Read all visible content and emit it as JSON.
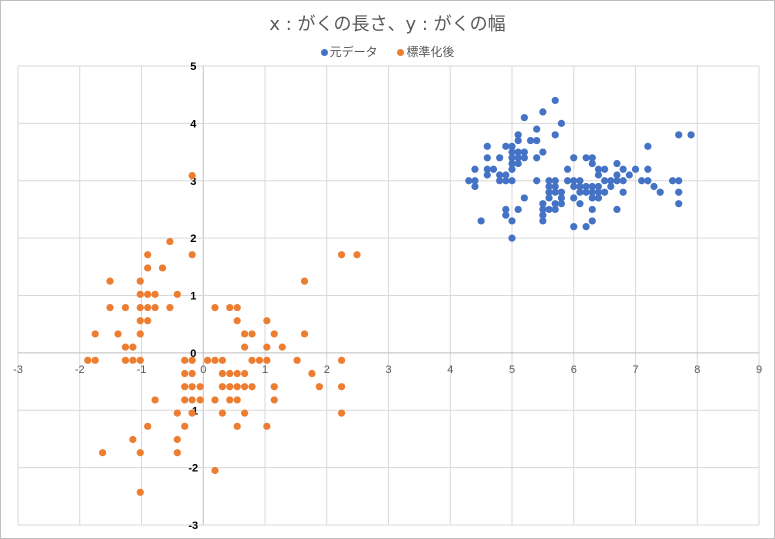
{
  "chart_data": {
    "type": "scatter",
    "title": "x : がくの長さ、y : がくの幅",
    "xlabel": "",
    "ylabel": "",
    "xlim": [
      -3,
      9
    ],
    "ylim": [
      -3,
      5
    ],
    "x_ticks": [
      -3,
      -2,
      -1,
      0,
      1,
      2,
      3,
      4,
      5,
      6,
      7,
      8,
      9
    ],
    "y_ticks": [
      -3,
      -2,
      -1,
      0,
      1,
      2,
      3,
      4,
      5
    ],
    "grid": true,
    "legend_position": "top",
    "legend": [
      "元データ",
      "標準化後"
    ],
    "series": [
      {
        "name": "元データ",
        "color": "#4472C4",
        "points": [
          [
            4.3,
            3.0
          ],
          [
            4.4,
            2.9
          ],
          [
            4.4,
            3.0
          ],
          [
            4.4,
            3.2
          ],
          [
            4.5,
            2.3
          ],
          [
            4.6,
            3.1
          ],
          [
            4.6,
            3.2
          ],
          [
            4.6,
            3.4
          ],
          [
            4.6,
            3.6
          ],
          [
            4.7,
            3.2
          ],
          [
            4.8,
            3.0
          ],
          [
            4.8,
            3.1
          ],
          [
            4.8,
            3.4
          ],
          [
            4.9,
            2.4
          ],
          [
            4.9,
            2.5
          ],
          [
            4.9,
            3.0
          ],
          [
            4.9,
            3.1
          ],
          [
            4.9,
            3.6
          ],
          [
            5.0,
            2.0
          ],
          [
            5.0,
            2.3
          ],
          [
            5.0,
            3.0
          ],
          [
            5.0,
            3.2
          ],
          [
            5.0,
            3.3
          ],
          [
            5.0,
            3.4
          ],
          [
            5.0,
            3.5
          ],
          [
            5.0,
            3.6
          ],
          [
            5.1,
            2.5
          ],
          [
            5.1,
            3.3
          ],
          [
            5.1,
            3.4
          ],
          [
            5.1,
            3.5
          ],
          [
            5.1,
            3.7
          ],
          [
            5.1,
            3.8
          ],
          [
            5.2,
            2.7
          ],
          [
            5.2,
            3.4
          ],
          [
            5.2,
            3.5
          ],
          [
            5.2,
            4.1
          ],
          [
            5.3,
            3.7
          ],
          [
            5.4,
            3.0
          ],
          [
            5.4,
            3.4
          ],
          [
            5.4,
            3.7
          ],
          [
            5.4,
            3.9
          ],
          [
            5.5,
            2.3
          ],
          [
            5.5,
            2.4
          ],
          [
            5.5,
            2.5
          ],
          [
            5.5,
            2.6
          ],
          [
            5.5,
            3.5
          ],
          [
            5.5,
            4.2
          ],
          [
            5.6,
            2.5
          ],
          [
            5.6,
            2.7
          ],
          [
            5.6,
            2.8
          ],
          [
            5.6,
            2.9
          ],
          [
            5.6,
            3.0
          ],
          [
            5.7,
            2.5
          ],
          [
            5.7,
            2.6
          ],
          [
            5.7,
            2.8
          ],
          [
            5.7,
            2.9
          ],
          [
            5.7,
            3.0
          ],
          [
            5.7,
            3.8
          ],
          [
            5.7,
            4.4
          ],
          [
            5.8,
            2.6
          ],
          [
            5.8,
            2.7
          ],
          [
            5.8,
            2.8
          ],
          [
            5.8,
            4.0
          ],
          [
            5.9,
            3.0
          ],
          [
            5.9,
            3.2
          ],
          [
            6.0,
            2.2
          ],
          [
            6.0,
            2.7
          ],
          [
            6.0,
            2.9
          ],
          [
            6.0,
            3.0
          ],
          [
            6.0,
            3.4
          ],
          [
            6.1,
            2.6
          ],
          [
            6.1,
            2.8
          ],
          [
            6.1,
            2.9
          ],
          [
            6.1,
            3.0
          ],
          [
            6.2,
            2.2
          ],
          [
            6.2,
            2.8
          ],
          [
            6.2,
            2.9
          ],
          [
            6.2,
            3.4
          ],
          [
            6.3,
            2.3
          ],
          [
            6.3,
            2.5
          ],
          [
            6.3,
            2.7
          ],
          [
            6.3,
            2.8
          ],
          [
            6.3,
            2.9
          ],
          [
            6.3,
            3.3
          ],
          [
            6.3,
            3.4
          ],
          [
            6.4,
            2.7
          ],
          [
            6.4,
            2.8
          ],
          [
            6.4,
            2.9
          ],
          [
            6.4,
            3.1
          ],
          [
            6.4,
            3.2
          ],
          [
            6.5,
            2.8
          ],
          [
            6.5,
            3.0
          ],
          [
            6.5,
            3.2
          ],
          [
            6.6,
            2.9
          ],
          [
            6.6,
            3.0
          ],
          [
            6.7,
            2.5
          ],
          [
            6.7,
            3.0
          ],
          [
            6.7,
            3.1
          ],
          [
            6.7,
            3.3
          ],
          [
            6.8,
            2.8
          ],
          [
            6.8,
            3.0
          ],
          [
            6.8,
            3.2
          ],
          [
            6.9,
            3.1
          ],
          [
            7.0,
            3.2
          ],
          [
            7.1,
            3.0
          ],
          [
            7.2,
            3.0
          ],
          [
            7.2,
            3.2
          ],
          [
            7.2,
            3.6
          ],
          [
            7.3,
            2.9
          ],
          [
            7.4,
            2.8
          ],
          [
            7.6,
            3.0
          ],
          [
            7.7,
            2.6
          ],
          [
            7.7,
            2.8
          ],
          [
            7.7,
            3.0
          ],
          [
            7.7,
            3.8
          ],
          [
            7.9,
            3.8
          ]
        ]
      },
      {
        "name": "標準化後",
        "color": "#ED7D31",
        "points": [
          [
            -1.87,
            -0.13
          ],
          [
            -1.75,
            -0.13
          ],
          [
            -1.75,
            0.33
          ],
          [
            -1.51,
            0.79
          ],
          [
            -1.51,
            1.25
          ],
          [
            -1.38,
            0.33
          ],
          [
            -1.26,
            -0.13
          ],
          [
            -1.26,
            0.79
          ],
          [
            -1.26,
            0.1
          ],
          [
            -1.14,
            -0.13
          ],
          [
            -1.14,
            0.1
          ],
          [
            -1.02,
            -0.13
          ],
          [
            -1.02,
            0.33
          ],
          [
            -1.02,
            0.56
          ],
          [
            -1.02,
            0.79
          ],
          [
            -1.02,
            1.02
          ],
          [
            -1.02,
            1.25
          ],
          [
            -0.9,
            0.56
          ],
          [
            -0.9,
            0.79
          ],
          [
            -0.9,
            1.02
          ],
          [
            -0.9,
            1.48
          ],
          [
            -0.9,
            1.71
          ],
          [
            -0.78,
            0.79
          ],
          [
            -0.78,
            1.02
          ],
          [
            -0.78,
            -0.82
          ],
          [
            -0.66,
            1.48
          ],
          [
            -0.54,
            0.79
          ],
          [
            -0.54,
            1.94
          ],
          [
            -0.42,
            1.02
          ],
          [
            -0.42,
            -1.05
          ],
          [
            -0.42,
            -1.51
          ],
          [
            -0.42,
            -1.74
          ],
          [
            -0.3,
            -0.13
          ],
          [
            -0.3,
            -0.59
          ],
          [
            -0.3,
            -0.82
          ],
          [
            -0.3,
            -1.28
          ],
          [
            -0.3,
            -0.36
          ],
          [
            -0.18,
            1.71
          ],
          [
            -0.18,
            3.09
          ],
          [
            -0.18,
            -0.13
          ],
          [
            -0.18,
            -0.36
          ],
          [
            -0.18,
            -0.59
          ],
          [
            -0.18,
            -0.82
          ],
          [
            -0.18,
            -1.05
          ],
          [
            -0.05,
            -0.59
          ],
          [
            -0.05,
            -0.82
          ],
          [
            -1.02,
            -1.74
          ],
          [
            -1.14,
            -1.51
          ],
          [
            -0.9,
            -1.28
          ],
          [
            -1.63,
            -1.74
          ],
          [
            -1.02,
            -2.43
          ],
          [
            0.07,
            -0.13
          ],
          [
            0.19,
            -0.13
          ],
          [
            0.19,
            -0.82
          ],
          [
            0.19,
            0.79
          ],
          [
            0.19,
            -2.05
          ],
          [
            0.31,
            -0.13
          ],
          [
            0.31,
            -0.36
          ],
          [
            0.31,
            -0.59
          ],
          [
            0.31,
            -1.05
          ],
          [
            0.43,
            0.79
          ],
          [
            0.43,
            -0.36
          ],
          [
            0.43,
            -0.59
          ],
          [
            0.43,
            -0.82
          ],
          [
            0.55,
            0.79
          ],
          [
            0.55,
            0.56
          ],
          [
            0.55,
            -0.36
          ],
          [
            0.55,
            -0.59
          ],
          [
            0.55,
            -0.82
          ],
          [
            0.55,
            -1.28
          ],
          [
            0.67,
            0.33
          ],
          [
            0.67,
            0.1
          ],
          [
            0.67,
            -0.36
          ],
          [
            0.67,
            -0.59
          ],
          [
            0.67,
            -1.05
          ],
          [
            0.79,
            -0.13
          ],
          [
            0.79,
            0.33
          ],
          [
            0.79,
            -0.59
          ],
          [
            0.91,
            -0.13
          ],
          [
            1.03,
            -0.13
          ],
          [
            1.03,
            0.1
          ],
          [
            1.03,
            0.56
          ],
          [
            1.03,
            -1.28
          ],
          [
            1.15,
            0.33
          ],
          [
            1.15,
            -0.82
          ],
          [
            1.15,
            -0.59
          ],
          [
            1.28,
            0.1
          ],
          [
            1.52,
            -0.13
          ],
          [
            1.64,
            0.33
          ],
          [
            1.64,
            1.25
          ],
          [
            1.76,
            -0.36
          ],
          [
            1.88,
            -0.59
          ],
          [
            2.24,
            1.71
          ],
          [
            2.24,
            -0.13
          ],
          [
            2.24,
            -0.59
          ],
          [
            2.24,
            -1.05
          ],
          [
            2.49,
            1.71
          ]
        ]
      }
    ]
  },
  "legend": {
    "items": [
      {
        "label": "元データ",
        "color": "#4472C4"
      },
      {
        "label": "標準化後",
        "color": "#ED7D31"
      }
    ]
  }
}
